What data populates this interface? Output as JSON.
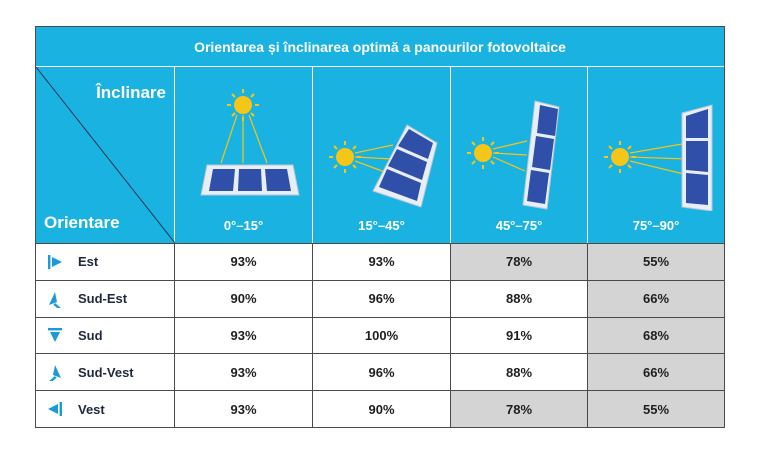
{
  "title": "Orientarea și înclinarea optimă a panourilor fotovoltaice",
  "corner": {
    "top_label": "Înclinare",
    "bottom_label": "Orientare"
  },
  "columns": [
    {
      "label": "0°–15°"
    },
    {
      "label": "15°–45°"
    },
    {
      "label": "45°–75°"
    },
    {
      "label": "75°–90°"
    }
  ],
  "rows": [
    {
      "name": "Est",
      "icon": "east-arrow-icon",
      "values": [
        "93%",
        "93%",
        "78%",
        "55%"
      ]
    },
    {
      "name": "Sud-Est",
      "icon": "southeast-arrow-icon",
      "values": [
        "90%",
        "96%",
        "88%",
        "66%"
      ]
    },
    {
      "name": "Sud",
      "icon": "south-arrow-icon",
      "values": [
        "93%",
        "100%",
        "91%",
        "68%"
      ]
    },
    {
      "name": "Sud-Vest",
      "icon": "southwest-arrow-icon",
      "values": [
        "93%",
        "96%",
        "88%",
        "66%"
      ]
    },
    {
      "name": "Vest",
      "icon": "west-arrow-icon",
      "values": [
        "93%",
        "90%",
        "78%",
        "55%"
      ]
    }
  ],
  "colors": {
    "header_bg": "#1ab2e0",
    "highlight_gray": "#d4d4d4",
    "icon_blue": "#1a9bd7",
    "panel_blue": "#2f4fa8",
    "sun_yellow": "#f5c518"
  }
}
